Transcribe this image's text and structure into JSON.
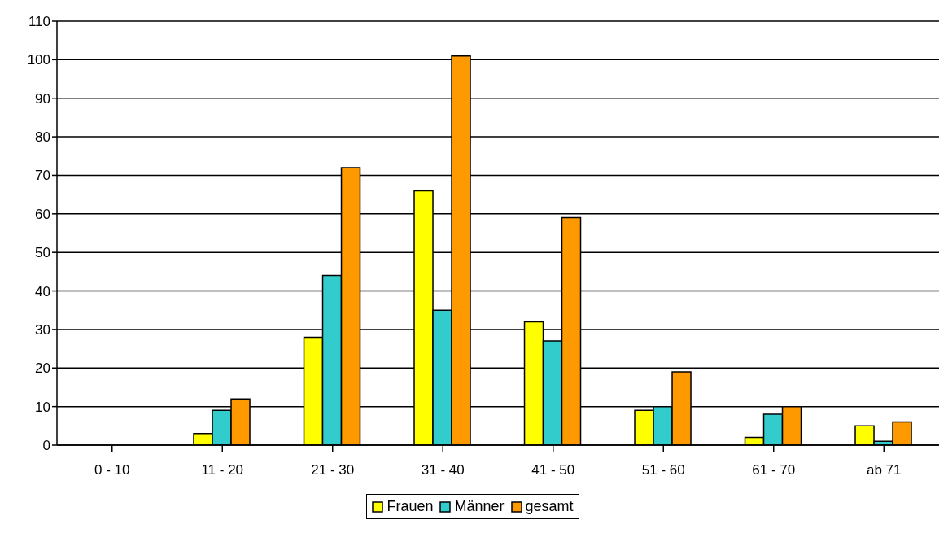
{
  "chart_data": {
    "type": "bar",
    "categories": [
      "0 - 10",
      "11 - 20",
      "21 - 30",
      "31 - 40",
      "41 - 50",
      "51 - 60",
      "61 - 70",
      "ab 71"
    ],
    "series": [
      {
        "name": "Frauen",
        "color": "#ffff00",
        "values": [
          0,
          3,
          28,
          66,
          32,
          9,
          2,
          5
        ]
      },
      {
        "name": "Männer",
        "color": "#33cccc",
        "values": [
          0,
          9,
          44,
          35,
          27,
          10,
          8,
          1
        ]
      },
      {
        "name": "gesamt",
        "color": "#ff9900",
        "values": [
          0,
          12,
          72,
          101,
          59,
          19,
          10,
          6
        ]
      }
    ],
    "ylim": [
      0,
      110
    ],
    "yticks": [
      0,
      10,
      20,
      30,
      40,
      50,
      60,
      70,
      80,
      90,
      100,
      110
    ],
    "grid": "y",
    "legend": "bottom"
  }
}
